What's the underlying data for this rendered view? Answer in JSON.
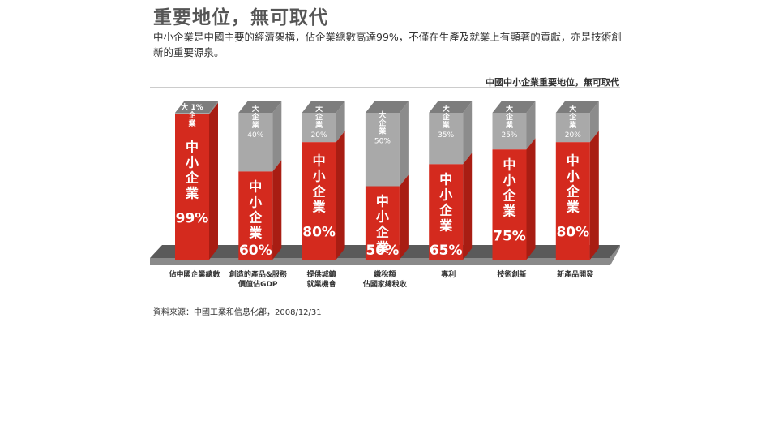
{
  "heading": "重要地位，無可取代",
  "intro": "中小企業是中國主要的經濟架構，佔企業總數高達99%，不僅在生產及就業上有顯著的貢獻，亦是技術創新的重要源泉。",
  "source": "資料來源：中國工業和信息化部，2008/12/31",
  "colors": {
    "sme": "#d42a1e",
    "large": "#a9a9a9",
    "floor": "#5a5a5a",
    "heading": "#555555"
  },
  "chart_data": {
    "type": "bar",
    "title": "中國中小企業重要地位，無可取代",
    "stacked": true,
    "unit": "%",
    "ylim": [
      0,
      100
    ],
    "categories": [
      "佔中國企業總數",
      "創造的產品&服務 價值佔GDP",
      "提供城鎮 就業機會",
      "繳稅額 佔國家總稅收",
      "專利",
      "技術創新",
      "新產品開發"
    ],
    "series": [
      {
        "name": "中小企業",
        "values": [
          99,
          60,
          80,
          50,
          65,
          75,
          80
        ]
      },
      {
        "name": "大企業",
        "values": [
          1,
          40,
          20,
          50,
          35,
          25,
          20
        ]
      }
    ]
  }
}
